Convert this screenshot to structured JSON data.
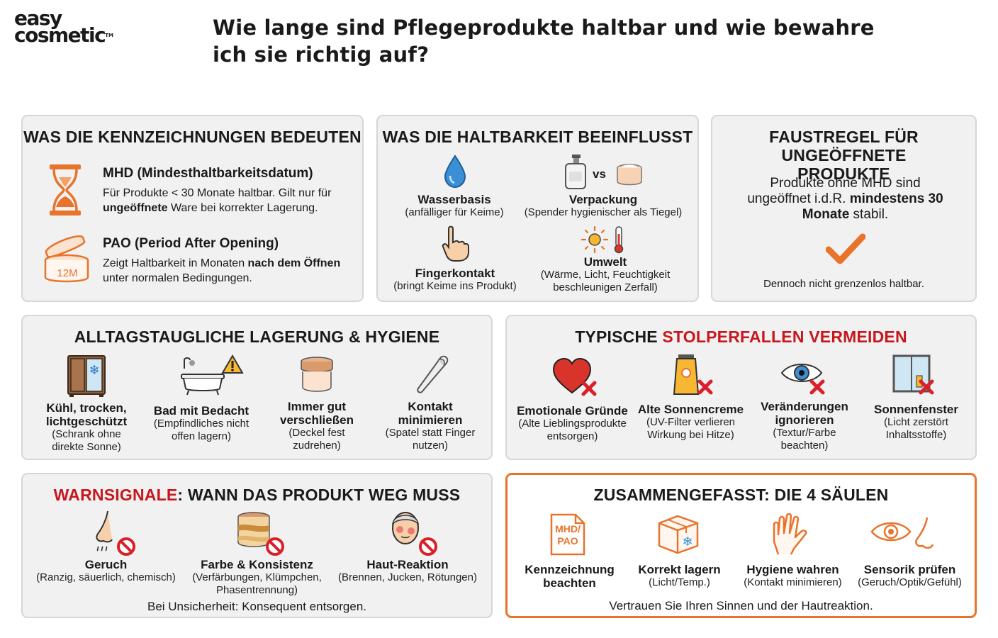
{
  "logo": {
    "line1": "easy",
    "line2": "cosmetic",
    "tm": "TM"
  },
  "title": "Wie lange sind Pflegeprodukte haltbar und wie bewahre ich sie richtig auf?",
  "card1": {
    "title": "WAS DIE KENNZEICHNUNGEN BEDEUTEN",
    "mhd": {
      "heading": "MHD (Mindesthaltbarkeitsdatum)",
      "text_a": "Für Produkte < 30 Monate haltbar. Gilt nur für ",
      "bold": "ungeöffnete",
      "text_b": " Ware bei korrekter Lagerung."
    },
    "pao": {
      "heading": "PAO (Period After Opening)",
      "text_a": "Zeigt Haltbarkeit in Monaten ",
      "bold": "nach dem Öffnen",
      "text_b": " unter normalen Bedingungen.",
      "jar_label": "12M"
    }
  },
  "card2": {
    "title": "WAS DIE HALTBARKEIT BEEINFLUSST",
    "vs": "vs",
    "items": [
      {
        "name": "Wasserbasis",
        "desc": "(anfälliger für Keime)"
      },
      {
        "name": "Verpackung",
        "desc": "(Spender hygienischer als Tiegel)"
      },
      {
        "name": "Fingerkontakt",
        "desc": "(bringt Keime ins Produkt)"
      },
      {
        "name": "Umwelt",
        "desc": "(Wärme, Licht, Feuchtigkeit beschleunigen Zerfall)"
      }
    ]
  },
  "card3": {
    "title": "FAUSTREGEL FÜR UNGEÖFFNETE PRODUKTE",
    "text_a": "Produkte ohne MHD sind ungeöffnet i.d.R. ",
    "bold": "mindestens 30 Monate",
    "text_b": " stabil.",
    "footer": "Dennoch nicht grenzenlos haltbar."
  },
  "card4": {
    "title": "ALLTAGSTAUGLICHE LAGERUNG & HYGIENE",
    "items": [
      {
        "name": "Kühl, trocken, lichtgeschützt",
        "desc": "(Schrank ohne direkte Sonne)"
      },
      {
        "name": "Bad mit Bedacht",
        "desc": "(Empfindliches nicht offen lagern)"
      },
      {
        "name": "Immer gut verschließen",
        "desc": "(Deckel fest zudrehen)"
      },
      {
        "name": "Kontakt minimieren",
        "desc": "(Spatel statt Finger nutzen)"
      }
    ]
  },
  "card5": {
    "title_a": "TYPISCHE ",
    "title_b": "STOLPERFALLEN VERMEIDEN",
    "items": [
      {
        "name": "Emotionale Gründe",
        "desc": "(Alte Lieblingsprodukte entsorgen)"
      },
      {
        "name": "Alte Sonnencreme",
        "desc": "(UV-Filter verlieren Wirkung bei Hitze)"
      },
      {
        "name": "Veränderungen ignorieren",
        "desc": "(Textur/Farbe beachten)"
      },
      {
        "name": "Sonnenfenster",
        "desc": "(Licht zerstört Inhaltsstoffe)"
      }
    ]
  },
  "card6": {
    "title_a": "WARNSIGNALE",
    "title_b": ": WANN DAS PRODUKT WEG MUSS",
    "items": [
      {
        "name": "Geruch",
        "desc": "(Ranzig, säuerlich, chemisch)"
      },
      {
        "name": "Farbe & Konsistenz",
        "desc": "(Verfärbungen, Klümpchen, Phasentrennung)"
      },
      {
        "name": "Haut-Reaktion",
        "desc": "(Brennen, Jucken, Rötungen)"
      }
    ],
    "footer": "Bei Unsicherheit: Konsequent entsorgen."
  },
  "card7": {
    "title": "ZUSAMMENGEFASST: DIE 4 SÄULEN",
    "doc_label": "MHD/ PAO",
    "items": [
      {
        "name": "Kennzeichnung beachten",
        "desc": ""
      },
      {
        "name": "Korrekt lagern",
        "desc": "(Licht/Temp.)"
      },
      {
        "name": "Hygiene wahren",
        "desc": "(Kontakt minimieren)"
      },
      {
        "name": "Sensorik prüfen",
        "desc": "(Geruch/Optik/Gefühl)"
      }
    ],
    "footer": "Vertrauen Sie Ihren Sinnen und der Hautreaktion."
  },
  "colors": {
    "accent": "#e8732a",
    "warning_red": "#c8161d",
    "card_bg": "#f1f1f1",
    "card_border": "#d6d6d6",
    "water_blue": "#3b8fd6"
  }
}
